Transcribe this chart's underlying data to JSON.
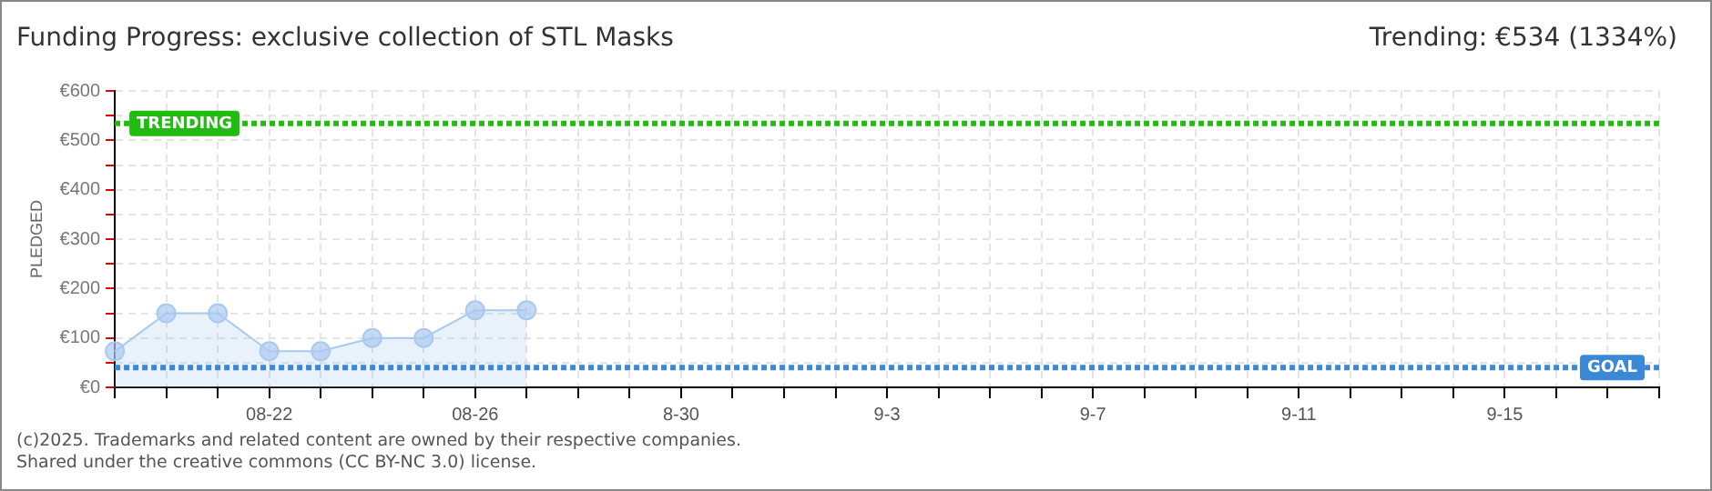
{
  "chart_data": {
    "type": "area",
    "title": "Funding Progress: exclusive collection of STL Masks",
    "subtitle": "Trending:  €534 (1334%)",
    "ylabel": "PLEDGED",
    "categories": [
      null,
      null,
      null,
      "08-22",
      null,
      null,
      null,
      "08-26",
      null,
      null,
      null,
      "8-30",
      null,
      null,
      null,
      "9-3",
      null,
      null,
      null,
      "9-7",
      null,
      null,
      null,
      "9-11",
      null,
      null,
      null,
      "9-15",
      null,
      null,
      null
    ],
    "series": [
      {
        "color": "#a9c9ef",
        "values": [
          73,
          150,
          150,
          73,
          73,
          100,
          100,
          156,
          156,
          null,
          null,
          null,
          null,
          null,
          null,
          null,
          null,
          null,
          null,
          null,
          null,
          null,
          null,
          null,
          null,
          null,
          null,
          null,
          null,
          null,
          null
        ]
      }
    ],
    "ylim": [
      0,
      600
    ],
    "yticks": [
      {
        "value": 0,
        "label": "€0"
      },
      {
        "value": 50,
        "label": null
      },
      {
        "value": 100,
        "label": "€100"
      },
      {
        "value": 150,
        "label": null
      },
      {
        "value": 200,
        "label": "€200"
      },
      {
        "value": 250,
        "label": null
      },
      {
        "value": 300,
        "label": "€300"
      },
      {
        "value": 350,
        "label": null
      },
      {
        "value": 400,
        "label": "€400"
      },
      {
        "value": 450,
        "label": null
      },
      {
        "value": 500,
        "label": "€500"
      },
      {
        "value": 550,
        "label": null
      },
      {
        "value": 600,
        "label": "€600"
      }
    ],
    "ref_lines": [
      {
        "axis": "y",
        "value": 534,
        "label": "TRENDING",
        "color": "#22bb11",
        "line_style": "dotted"
      },
      {
        "axis": "y",
        "value": 40,
        "label": "GOAL",
        "color": "#3a88d6",
        "line_style": "dotted"
      }
    ],
    "grid": true,
    "marker": "circle",
    "legend": false,
    "annotations": [
      "(c)2025. Trademarks and related content are owned by their respective companies.",
      "Shared under the creative commons (CC BY-NC 3.0) license."
    ]
  }
}
